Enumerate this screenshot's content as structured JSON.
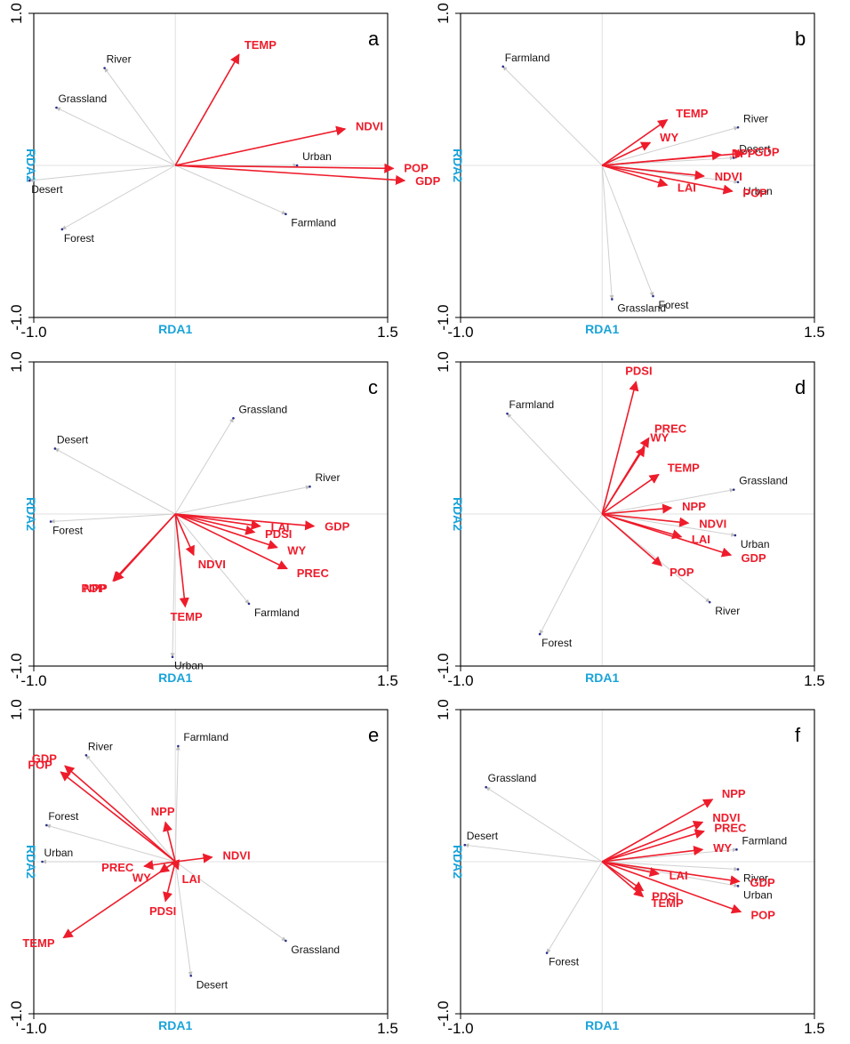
{
  "figure": {
    "xlabel": "RDA1",
    "ylabel": "RDA2",
    "xticks": [
      "-1.0",
      "1.5"
    ],
    "yticks": [
      "1.0",
      "-1.0"
    ],
    "colors": {
      "environment_arrows": "#ee1c2b",
      "land_use_arrows": "#cfcfcf",
      "axis_labels": "#1aa3d9",
      "land_use_points": "#2a2f8a"
    }
  },
  "chart_data": [
    {
      "type": "scatter",
      "panel": "a",
      "xlabel": "RDA1",
      "ylabel": "RDA2",
      "xlim": [
        -1.0,
        1.5
      ],
      "ylim": [
        -1.0,
        1.0
      ],
      "grid": false,
      "environment_arrows": [
        {
          "name": "TEMP",
          "x": 0.45,
          "y": 0.73
        },
        {
          "name": "NDVI",
          "x": 1.2,
          "y": 0.24
        },
        {
          "name": "POP",
          "x": 1.54,
          "y": -0.02
        },
        {
          "name": "GDP",
          "x": 1.62,
          "y": -0.1
        }
      ],
      "land_use_points": [
        {
          "name": "River",
          "x": -0.5,
          "y": 0.64
        },
        {
          "name": "Grassland",
          "x": -0.84,
          "y": 0.38
        },
        {
          "name": "Urban",
          "x": 0.86,
          "y": 0.0
        },
        {
          "name": "Desert",
          "x": -1.03,
          "y": -0.1
        },
        {
          "name": "Farmland",
          "x": 0.78,
          "y": -0.32
        },
        {
          "name": "Forest",
          "x": -0.8,
          "y": -0.42
        }
      ]
    },
    {
      "type": "scatter",
      "panel": "b",
      "xlabel": "RDA1",
      "ylabel": "RDA2",
      "xlim": [
        -1.0,
        1.5
      ],
      "ylim": [
        -1.0,
        1.0
      ],
      "grid": false,
      "environment_arrows": [
        {
          "name": "TEMP",
          "x": 0.46,
          "y": 0.3
        },
        {
          "name": "WY",
          "x": 0.34,
          "y": 0.15
        },
        {
          "name": "NPP",
          "x": 0.84,
          "y": 0.07
        },
        {
          "name": "GDP",
          "x": 1.0,
          "y": 0.08
        },
        {
          "name": "LAI",
          "x": 0.46,
          "y": -0.13
        },
        {
          "name": "NDVI",
          "x": 0.72,
          "y": -0.07
        },
        {
          "name": "POP",
          "x": 0.92,
          "y": -0.17
        }
      ],
      "land_use_points": [
        {
          "name": "Farmland",
          "x": -0.7,
          "y": 0.65
        },
        {
          "name": "River",
          "x": 0.96,
          "y": 0.25
        },
        {
          "name": "Desert",
          "x": 0.93,
          "y": 0.05
        },
        {
          "name": "Urban",
          "x": 0.96,
          "y": -0.11
        },
        {
          "name": "Grassland",
          "x": 0.07,
          "y": -0.88
        },
        {
          "name": "Forest",
          "x": 0.36,
          "y": -0.86
        }
      ]
    },
    {
      "type": "scatter",
      "panel": "c",
      "xlabel": "RDA1",
      "ylabel": "RDA2",
      "xlim": [
        -1.0,
        1.5
      ],
      "ylim": [
        -1.0,
        1.0
      ],
      "grid": false,
      "environment_arrows": [
        {
          "name": "LAI",
          "x": 0.6,
          "y": -0.08
        },
        {
          "name": "GDP",
          "x": 0.98,
          "y": -0.08
        },
        {
          "name": "PDSI",
          "x": 0.56,
          "y": -0.12
        },
        {
          "name": "WY",
          "x": 0.72,
          "y": -0.22
        },
        {
          "name": "PREC",
          "x": 0.79,
          "y": -0.36
        },
        {
          "name": "NDVI",
          "x": 0.13,
          "y": -0.27
        },
        {
          "name": "NPP",
          "x": -0.43,
          "y": -0.44
        },
        {
          "name": "POP",
          "x": -0.44,
          "y": -0.44
        },
        {
          "name": "TEMP",
          "x": 0.07,
          "y": -0.61
        }
      ],
      "land_use_points": [
        {
          "name": "Desert",
          "x": -0.85,
          "y": 0.43
        },
        {
          "name": "Grassland",
          "x": 0.41,
          "y": 0.63
        },
        {
          "name": "River",
          "x": 0.95,
          "y": 0.18
        },
        {
          "name": "Forest",
          "x": -0.88,
          "y": -0.05
        },
        {
          "name": "Farmland",
          "x": 0.52,
          "y": -0.59
        },
        {
          "name": "Urban",
          "x": -0.02,
          "y": -0.94
        }
      ]
    },
    {
      "type": "scatter",
      "panel": "d",
      "xlabel": "RDA1",
      "ylabel": "RDA2",
      "xlim": [
        -1.0,
        1.5
      ],
      "ylim": [
        -1.0,
        1.0
      ],
      "grid": false,
      "environment_arrows": [
        {
          "name": "PDSI",
          "x": 0.24,
          "y": 0.87
        },
        {
          "name": "PREC",
          "x": 0.33,
          "y": 0.5
        },
        {
          "name": "WY",
          "x": 0.3,
          "y": 0.44
        },
        {
          "name": "TEMP",
          "x": 0.4,
          "y": 0.26
        },
        {
          "name": "NPP",
          "x": 0.49,
          "y": 0.04
        },
        {
          "name": "NDVI",
          "x": 0.61,
          "y": -0.06
        },
        {
          "name": "LAI",
          "x": 0.56,
          "y": -0.15
        },
        {
          "name": "GDP",
          "x": 0.91,
          "y": -0.27
        },
        {
          "name": "POP",
          "x": 0.42,
          "y": -0.34
        }
      ],
      "land_use_points": [
        {
          "name": "Farmland",
          "x": -0.67,
          "y": 0.66
        },
        {
          "name": "Grassland",
          "x": 0.93,
          "y": 0.16
        },
        {
          "name": "Urban",
          "x": 0.94,
          "y": -0.14
        },
        {
          "name": "River",
          "x": 0.76,
          "y": -0.58
        },
        {
          "name": "Forest",
          "x": -0.44,
          "y": -0.79
        }
      ]
    },
    {
      "type": "scatter",
      "panel": "e",
      "xlabel": "RDA1",
      "ylabel": "RDA2",
      "xlim": [
        -1.0,
        1.5
      ],
      "ylim": [
        -1.0,
        1.0
      ],
      "grid": false,
      "environment_arrows": [
        {
          "name": "GDP",
          "x": -0.78,
          "y": 0.63
        },
        {
          "name": "POP",
          "x": -0.81,
          "y": 0.59
        },
        {
          "name": "NPP",
          "x": -0.07,
          "y": 0.26
        },
        {
          "name": "NDVI",
          "x": 0.26,
          "y": 0.03
        },
        {
          "name": "PREC",
          "x": -0.22,
          "y": -0.03
        },
        {
          "name": "WY",
          "x": -0.11,
          "y": -0.07
        },
        {
          "name": "LAI",
          "x": 0.02,
          "y": -0.05
        },
        {
          "name": "PDSI",
          "x": -0.07,
          "y": -0.26
        },
        {
          "name": "TEMP",
          "x": -0.79,
          "y": -0.5
        }
      ],
      "land_use_points": [
        {
          "name": "River",
          "x": -0.63,
          "y": 0.7
        },
        {
          "name": "Farmland",
          "x": 0.02,
          "y": 0.76
        },
        {
          "name": "Forest",
          "x": -0.91,
          "y": 0.24
        },
        {
          "name": "Urban",
          "x": -0.94,
          "y": 0.0
        },
        {
          "name": "Grassland",
          "x": 0.78,
          "y": -0.52
        },
        {
          "name": "Desert",
          "x": 0.11,
          "y": -0.75
        }
      ]
    },
    {
      "type": "scatter",
      "panel": "f",
      "xlabel": "RDA1",
      "ylabel": "RDA2",
      "xlim": [
        -1.0,
        1.5
      ],
      "ylim": [
        -1.0,
        1.0
      ],
      "grid": false,
      "environment_arrows": [
        {
          "name": "NPP",
          "x": 0.78,
          "y": 0.41
        },
        {
          "name": "NDVI",
          "x": 0.71,
          "y": 0.26
        },
        {
          "name": "PREC",
          "x": 0.72,
          "y": 0.2
        },
        {
          "name": "WY",
          "x": 0.71,
          "y": 0.08
        },
        {
          "name": "LAI",
          "x": 0.4,
          "y": -0.08
        },
        {
          "name": "GDP",
          "x": 0.97,
          "y": -0.13
        },
        {
          "name": "TEMP",
          "x": 0.29,
          "y": -0.23
        },
        {
          "name": "PDSI",
          "x": 0.29,
          "y": -0.19
        },
        {
          "name": "POP",
          "x": 0.98,
          "y": -0.33
        }
      ],
      "land_use_points": [
        {
          "name": "Grassland",
          "x": -0.82,
          "y": 0.49
        },
        {
          "name": "Desert",
          "x": -0.97,
          "y": 0.11
        },
        {
          "name": "Farmland",
          "x": 0.95,
          "y": 0.08
        },
        {
          "name": "River",
          "x": 0.96,
          "y": -0.05
        },
        {
          "name": "Urban",
          "x": 0.96,
          "y": -0.16
        },
        {
          "name": "Forest",
          "x": -0.39,
          "y": -0.6
        }
      ]
    }
  ]
}
